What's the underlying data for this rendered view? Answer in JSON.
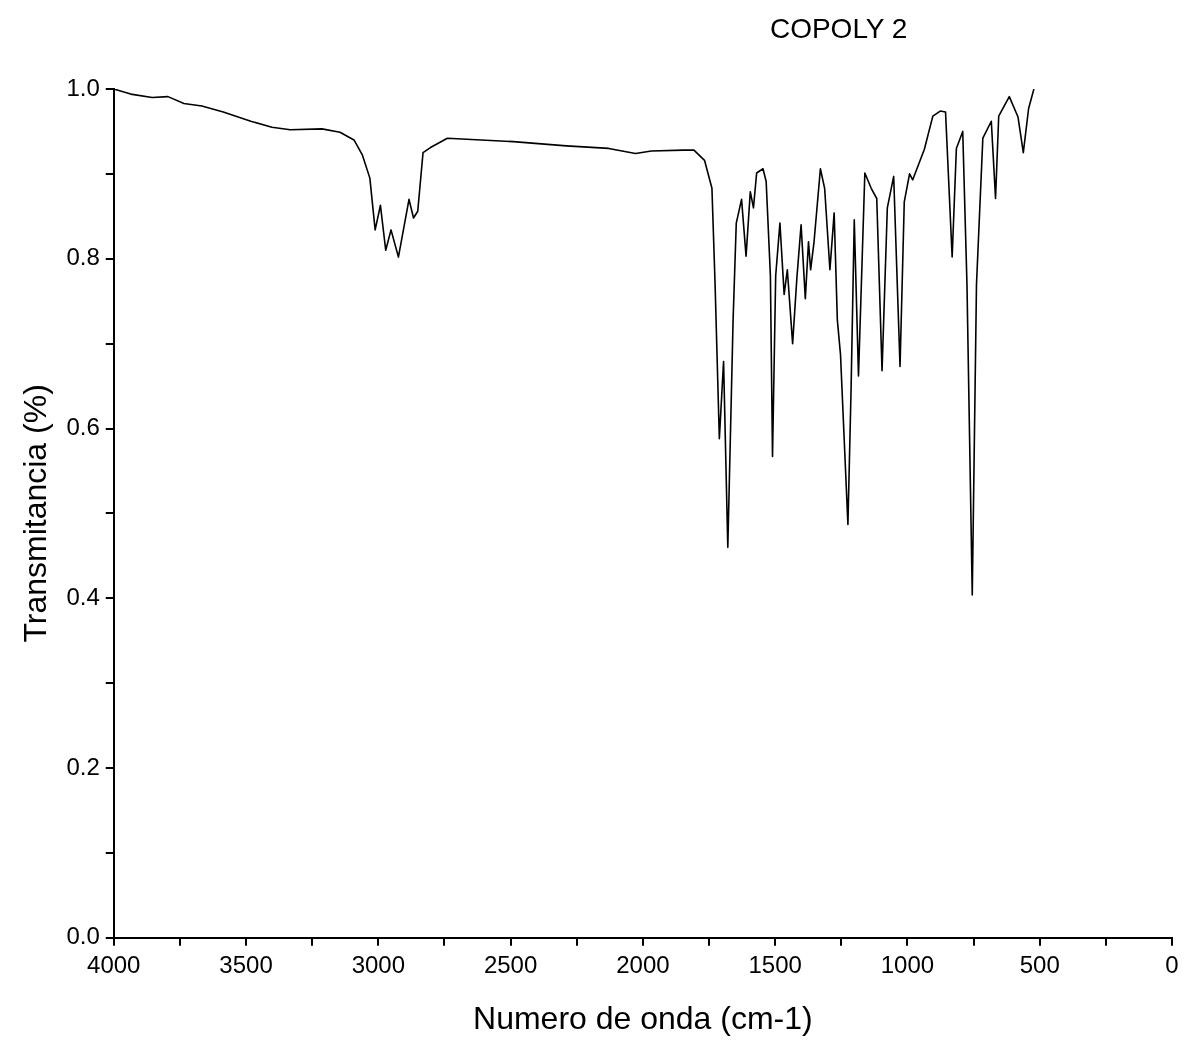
{
  "chart_data": {
    "type": "line",
    "title": "COPOLY 2",
    "xlabel": "Numero de onda (cm-1)",
    "ylabel": "Transmitancia (%)",
    "xlim": [
      4000,
      0
    ],
    "ylim": [
      0,
      1
    ],
    "xticks": [
      4000,
      {
        "value": 3750,
        "label": null
      },
      3500,
      {
        "value": 3250,
        "label": null
      },
      3000,
      {
        "value": 2750,
        "label": null
      },
      2500,
      {
        "value": 2250,
        "label": null
      },
      2000,
      {
        "value": 1750,
        "label": null
      },
      1500,
      {
        "value": 1250,
        "label": null
      },
      1000,
      {
        "value": 750,
        "label": null
      },
      500,
      {
        "value": 250,
        "label": null
      },
      0
    ],
    "yticks": [
      {
        "value": 0,
        "label": "0.0"
      },
      {
        "value": 0.1,
        "label": null
      },
      0.2,
      {
        "value": 0.3,
        "label": null
      },
      0.4,
      {
        "value": 0.5,
        "label": null
      },
      0.6,
      {
        "value": 0.7,
        "label": null
      },
      0.8,
      {
        "value": 0.9,
        "label": null
      },
      {
        "value": 1,
        "label": "1.0"
      }
    ],
    "grid": false,
    "legend": false,
    "marker": "none",
    "line_style": "solid",
    "series": [
      {
        "color": "#000000",
        "x": [
          4000,
          3936,
          3855,
          3795,
          3735,
          3667,
          3586,
          3482,
          3402,
          3333,
          3213,
          3145,
          3092,
          3060,
          3032,
          3012,
          2992,
          2972,
          2952,
          2924,
          2884,
          2867,
          2851,
          2831,
          2803,
          2739,
          2490,
          2289,
          2129,
          2028,
          1968,
          1847,
          1807,
          1767,
          1739,
          1727,
          1711,
          1695,
          1679,
          1659,
          1647,
          1627,
          1610,
          1594,
          1582,
          1570,
          1546,
          1534,
          1518,
          1510,
          1498,
          1482,
          1466,
          1454,
          1434,
          1418,
          1402,
          1386,
          1374,
          1366,
          1353,
          1329,
          1313,
          1293,
          1277,
          1265,
          1253,
          1225,
          1213,
          1201,
          1185,
          1161,
          1137,
          1116,
          1096,
          1076,
          1052,
          1028,
          1012,
          992,
          980,
          936,
          904,
          876,
          856,
          831,
          815,
          791,
          775,
          755,
          739,
          715,
          683,
          667,
          655,
          615,
          582,
          562,
          542,
          522
        ],
        "values": [
          1.0,
          0.994,
          0.99,
          0.991,
          0.983,
          0.98,
          0.973,
          0.962,
          0.955,
          0.952,
          0.953,
          0.949,
          0.94,
          0.922,
          0.895,
          0.834,
          0.863,
          0.81,
          0.834,
          0.802,
          0.87,
          0.848,
          0.856,
          0.925,
          0.931,
          0.942,
          0.938,
          0.933,
          0.93,
          0.924,
          0.927,
          0.928,
          0.928,
          0.916,
          0.883,
          0.769,
          0.588,
          0.679,
          0.46,
          0.728,
          0.842,
          0.87,
          0.803,
          0.879,
          0.86,
          0.901,
          0.906,
          0.891,
          0.78,
          0.567,
          0.78,
          0.842,
          0.758,
          0.787,
          0.7,
          0.777,
          0.84,
          0.753,
          0.82,
          0.787,
          0.82,
          0.906,
          0.883,
          0.787,
          0.854,
          0.728,
          0.687,
          0.487,
          0.647,
          0.846,
          0.662,
          0.901,
          0.883,
          0.871,
          0.668,
          0.86,
          0.897,
          0.673,
          0.867,
          0.9,
          0.893,
          0.929,
          0.968,
          0.974,
          0.973,
          0.802,
          0.93,
          0.95,
          0.77,
          0.404,
          0.77,
          0.942,
          0.962,
          0.871,
          0.968,
          0.991,
          0.967,
          0.925,
          0.977,
          1.0
        ]
      }
    ]
  }
}
